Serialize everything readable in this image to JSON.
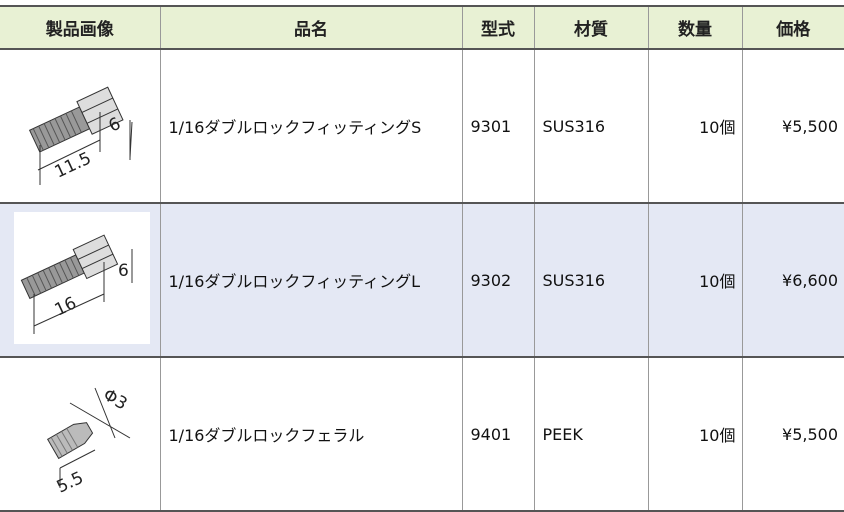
{
  "table": {
    "header": [
      "製品画像",
      "品名",
      "型式",
      "材質",
      "数量",
      "価格"
    ],
    "rows": [
      {
        "dimensions": [
          "6",
          "11.5"
        ],
        "name": "1/16ダブルロックフィッティングS",
        "model": "9301",
        "material": "SUS316",
        "quantity": "10個",
        "price": "¥5,500"
      },
      {
        "dimensions": [
          "6",
          "16"
        ],
        "name": "1/16ダブルロックフィッティングL",
        "model": "9302",
        "material": "SUS316",
        "quantity": "10個",
        "price": "¥6,600"
      },
      {
        "dimensions": [
          "Φ3",
          "5.5"
        ],
        "name": "1/16ダブルロックフェラル",
        "model": "9401",
        "material": "PEEK",
        "quantity": "10個",
        "price": "¥5,500"
      }
    ]
  }
}
